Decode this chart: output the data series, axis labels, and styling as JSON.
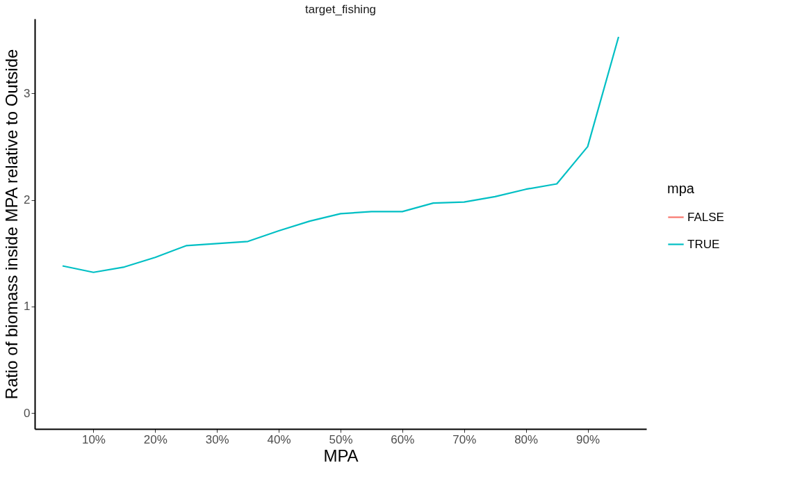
{
  "chart_data": {
    "type": "line",
    "title": "target_fishing",
    "xlabel": "MPA",
    "ylabel": "Ratio of biomass inside MPA relative to Outside",
    "legend_title": "mpa",
    "x": [
      5,
      10,
      15,
      20,
      25,
      30,
      35,
      40,
      45,
      50,
      55,
      60,
      65,
      70,
      75,
      80,
      85,
      90,
      95
    ],
    "series": [
      {
        "name": "FALSE",
        "color": "#f8766d",
        "values": [
          null,
          null,
          null,
          null,
          null,
          null,
          null,
          null,
          null,
          null,
          null,
          null,
          null,
          null,
          null,
          null,
          null,
          null,
          null
        ]
      },
      {
        "name": "TRUE",
        "color": "#00bfc4",
        "values": [
          1.38,
          1.32,
          1.37,
          1.46,
          1.57,
          1.59,
          1.61,
          1.71,
          1.8,
          1.87,
          1.89,
          1.89,
          1.97,
          1.98,
          2.03,
          2.1,
          2.15,
          2.5,
          3.53
        ]
      }
    ],
    "xlim": [
      0.5,
      99.5
    ],
    "ylim": [
      -0.15,
      3.7
    ],
    "xticks": [
      {
        "value": 10,
        "label": "10%"
      },
      {
        "value": 20,
        "label": "20%"
      },
      {
        "value": 30,
        "label": "30%"
      },
      {
        "value": 40,
        "label": "40%"
      },
      {
        "value": 50,
        "label": "50%"
      },
      {
        "value": 60,
        "label": "60%"
      },
      {
        "value": 70,
        "label": "70%"
      },
      {
        "value": 80,
        "label": "80%"
      },
      {
        "value": 90,
        "label": "90%"
      }
    ],
    "yticks": [
      0,
      1,
      2,
      3
    ],
    "grid": false,
    "legend": "right",
    "marker": "none",
    "line_style": "solid"
  }
}
